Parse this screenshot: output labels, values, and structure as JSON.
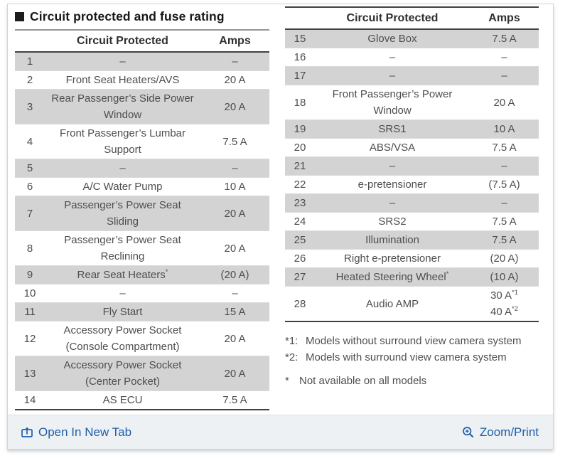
{
  "section": {
    "title": "Circuit protected and fuse rating"
  },
  "left_table": {
    "headers": {
      "circuit": "Circuit Protected",
      "amps": "Amps"
    },
    "rows": [
      {
        "num": "1",
        "circuit": "–",
        "amps": "–"
      },
      {
        "num": "2",
        "circuit": "Front Seat Heaters/AVS",
        "amps": "20 A"
      },
      {
        "num": "3",
        "circuit": "Rear Passenger’s Side Power Window",
        "amps": "20 A"
      },
      {
        "num": "4",
        "circuit": "Front Passenger’s Lumbar Support",
        "amps": "7.5 A"
      },
      {
        "num": "5",
        "circuit": "–",
        "amps": "–"
      },
      {
        "num": "6",
        "circuit": "A/C Water Pump",
        "amps": "10 A"
      },
      {
        "num": "7",
        "circuit": "Passenger’s Power Seat Sliding",
        "amps": "20 A"
      },
      {
        "num": "8",
        "circuit": "Passenger’s Power Seat Reclining",
        "amps": "20 A"
      },
      {
        "num": "9",
        "circuit": "Rear Seat Heaters",
        "circuit_sup": "*",
        "amps": "(20 A)"
      },
      {
        "num": "10",
        "circuit": "–",
        "amps": "–"
      },
      {
        "num": "11",
        "circuit": "Fly Start",
        "amps": "15 A"
      },
      {
        "num": "12",
        "circuit": "Accessory Power Socket (Console Compartment)",
        "amps": "20 A"
      },
      {
        "num": "13",
        "circuit": "Accessory Power Socket (Center Pocket)",
        "amps": "20 A"
      },
      {
        "num": "14",
        "circuit": "AS ECU",
        "amps": "7.5 A"
      }
    ]
  },
  "right_table": {
    "headers": {
      "circuit": "Circuit Protected",
      "amps": "Amps"
    },
    "rows": [
      {
        "num": "15",
        "circuit": "Glove Box",
        "amps": "7.5 A"
      },
      {
        "num": "16",
        "circuit": "–",
        "amps": "–"
      },
      {
        "num": "17",
        "circuit": "–",
        "amps": "–"
      },
      {
        "num": "18",
        "circuit": "Front Passenger’s Power Window",
        "amps": "20 A"
      },
      {
        "num": "19",
        "circuit": "SRS1",
        "amps": "10 A"
      },
      {
        "num": "20",
        "circuit": "ABS/VSA",
        "amps": "7.5 A"
      },
      {
        "num": "21",
        "circuit": "–",
        "amps": "–"
      },
      {
        "num": "22",
        "circuit": "e-pretensioner",
        "amps": "(7.5 A)"
      },
      {
        "num": "23",
        "circuit": "–",
        "amps": "–"
      },
      {
        "num": "24",
        "circuit": "SRS2",
        "amps": "7.5 A"
      },
      {
        "num": "25",
        "circuit": "Illumination",
        "amps": "7.5 A"
      },
      {
        "num": "26",
        "circuit": "Right e-pretensioner",
        "amps": "(20 A)"
      },
      {
        "num": "27",
        "circuit": "Heated Steering Wheel",
        "circuit_sup": "*",
        "amps": "(10 A)"
      },
      {
        "num": "28",
        "circuit": "Audio AMP",
        "amps_lines": [
          {
            "text": "30 A",
            "sup": "*1"
          },
          {
            "text": "40 A",
            "sup": "*2"
          }
        ]
      }
    ]
  },
  "footnotes": {
    "fn1": {
      "marker": "*1:",
      "text": "Models without surround view camera system"
    },
    "fn2": {
      "marker": "*2:",
      "text": "Models with surround view camera system"
    },
    "fn3": {
      "marker": "*",
      "text": "Not available on all models"
    }
  },
  "footer": {
    "open_in_new_tab": "Open In New Tab",
    "zoom_print": "Zoom/Print"
  },
  "colors": {
    "link_blue": "#1d5fa9",
    "row_gray": "#d3d3d3",
    "dark_rule": "#414143",
    "card_border": "#c9d6e2"
  },
  "icons": {
    "title_bullet": "black-square",
    "open_in_new_tab": "box-arrow-up",
    "zoom_print": "magnifier-plus"
  }
}
